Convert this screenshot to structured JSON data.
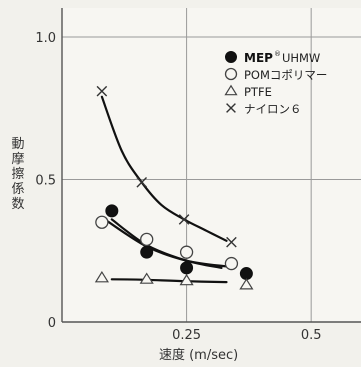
{
  "chart_data": {
    "type": "scatter",
    "xlabel": "速度 (m/sec)",
    "ylabel": "動摩擦係数",
    "xlim": [
      0,
      0.6
    ],
    "ylim": [
      0,
      1.0
    ],
    "x_ticks": [
      {
        "value": 0.25,
        "label": "0.25"
      },
      {
        "value": 0.5,
        "label": "0.5"
      }
    ],
    "y_ticks": [
      {
        "value": 0,
        "label": "0"
      },
      {
        "value": 0.5,
        "label": "0.5"
      },
      {
        "value": 1.0,
        "label": "1.0"
      }
    ],
    "grid": true,
    "legend_position": "top-right",
    "series": [
      {
        "name": "UHMW",
        "brand": "MEP",
        "brand_mark": "®",
        "marker": "filled-circle",
        "points": [
          [
            0.1,
            0.39
          ],
          [
            0.17,
            0.245
          ],
          [
            0.25,
            0.19
          ],
          [
            0.37,
            0.17
          ]
        ],
        "curve": [
          [
            0.1,
            0.36
          ],
          [
            0.17,
            0.27
          ],
          [
            0.25,
            0.215
          ],
          [
            0.32,
            0.19
          ]
        ]
      },
      {
        "name": "POMコポリマー",
        "marker": "open-circle",
        "points": [
          [
            0.08,
            0.35
          ],
          [
            0.17,
            0.29
          ],
          [
            0.25,
            0.245
          ],
          [
            0.34,
            0.205
          ]
        ],
        "curve": [
          [
            0.09,
            0.355
          ],
          [
            0.17,
            0.265
          ],
          [
            0.25,
            0.215
          ],
          [
            0.33,
            0.195
          ]
        ]
      },
      {
        "name": "PTFE",
        "marker": "open-triangle",
        "points": [
          [
            0.08,
            0.155
          ],
          [
            0.17,
            0.15
          ],
          [
            0.25,
            0.145
          ],
          [
            0.37,
            0.13
          ]
        ],
        "curve": [
          [
            0.1,
            0.15
          ],
          [
            0.17,
            0.148
          ],
          [
            0.25,
            0.143
          ],
          [
            0.33,
            0.14
          ]
        ]
      },
      {
        "name": "ナイロン６",
        "marker": "cross",
        "points": [
          [
            0.08,
            0.81
          ],
          [
            0.16,
            0.49
          ],
          [
            0.245,
            0.36
          ],
          [
            0.34,
            0.28
          ]
        ],
        "curve": [
          [
            0.08,
            0.79
          ],
          [
            0.12,
            0.6
          ],
          [
            0.16,
            0.49
          ],
          [
            0.2,
            0.41
          ],
          [
            0.245,
            0.36
          ],
          [
            0.29,
            0.32
          ],
          [
            0.33,
            0.285
          ]
        ]
      }
    ]
  }
}
